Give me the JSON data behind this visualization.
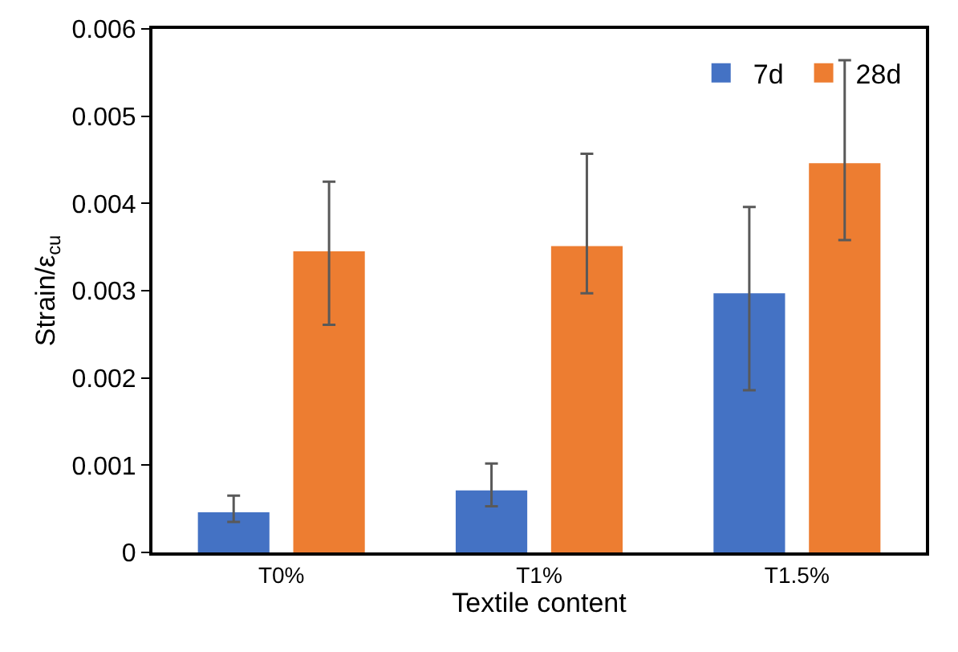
{
  "chart_data": {
    "type": "bar",
    "xlabel": "Textile content",
    "ylabel": "Strain/ε$_{cu}$",
    "categories": [
      "T0%",
      "T1%",
      "T1.5%"
    ],
    "series": [
      {
        "name": "7d",
        "color": "#4472c4",
        "values": [
          0.00046,
          0.00071,
          0.00297
        ],
        "errors": [
          [
            0.00035,
            0.00065
          ],
          [
            0.00053,
            0.00102
          ],
          [
            0.00186,
            0.00396
          ]
        ]
      },
      {
        "name": "28d",
        "color": "#ed7d31",
        "values": [
          0.00345,
          0.00351,
          0.00446
        ],
        "errors": [
          [
            0.00261,
            0.00425
          ],
          [
            0.00297,
            0.00457
          ],
          [
            0.00358,
            0.00564
          ]
        ]
      }
    ],
    "ylim": [
      0,
      0.006
    ],
    "yticks": [
      0,
      0.001,
      0.002,
      0.003,
      0.004,
      0.005,
      0.006
    ],
    "grid": false,
    "legend": "top right"
  }
}
